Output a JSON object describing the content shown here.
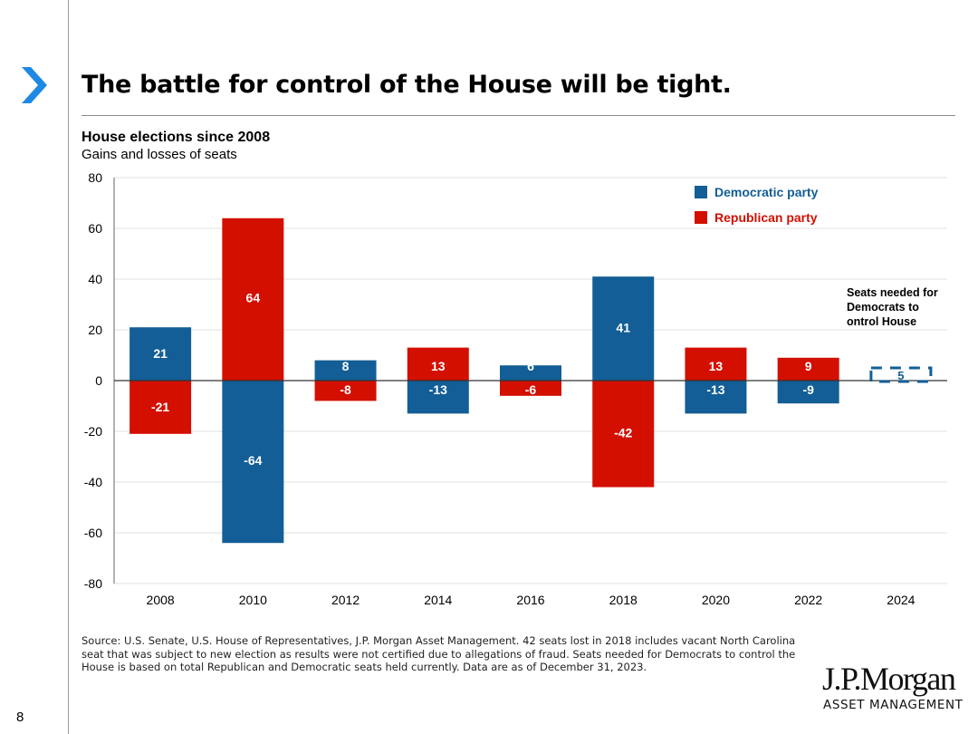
{
  "slide": {
    "title": "The battle for control of the House will be tight.",
    "page_number": "8",
    "source": "Source: U.S. Senate, U.S. House of Representatives, J.P. Morgan Asset Management. 42 seats lost in 2018 includes vacant North Carolina seat that was subject to new election as results were not certified due to allegations of fraud. Seats needed for Democrats to control the House is based on total Republican and Democratic seats held currently. Data are as of December 31, 2023.",
    "logo_main": "J.P.Morgan",
    "logo_sub": "ASSET MANAGEMENT",
    "accent_color": "#1e88e5"
  },
  "chart_data": {
    "type": "bar",
    "title": "House elections since 2008",
    "subtitle": "Gains and losses of seats",
    "categories": [
      "2008",
      "2010",
      "2012",
      "2014",
      "2016",
      "2018",
      "2020",
      "2022",
      "2024"
    ],
    "series": [
      {
        "name": "Democratic party",
        "color": "#135e96",
        "values": [
          21,
          -64,
          8,
          -13,
          6,
          41,
          -13,
          -9,
          null
        ]
      },
      {
        "name": "Republican party",
        "color": "#d30f00",
        "values": [
          -21,
          64,
          -8,
          13,
          -6,
          -42,
          13,
          9,
          null
        ]
      }
    ],
    "projection": {
      "category": "2024",
      "value": 5,
      "label": "5",
      "style": "dashed",
      "color": "#135e96"
    },
    "annotation": "Seats needed for Democrats to control House",
    "ylim": [
      -80,
      80
    ],
    "yticks": [
      80,
      60,
      40,
      20,
      0,
      -20,
      -40,
      -60,
      -80
    ],
    "grid": true,
    "legend_position": "top-right"
  }
}
